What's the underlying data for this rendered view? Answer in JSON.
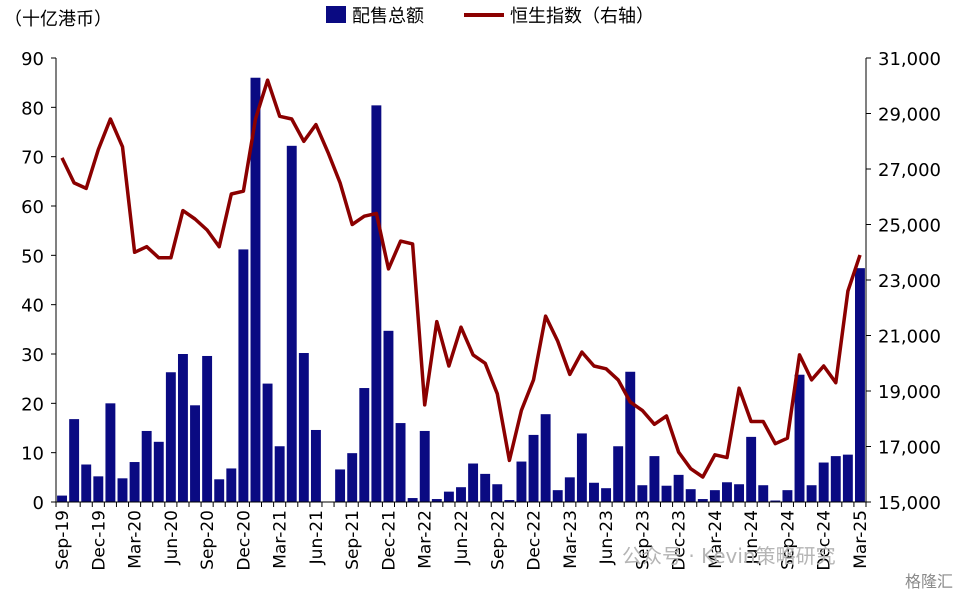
{
  "chart_data": {
    "type": "bar+line",
    "unit_label": "（十亿港币）",
    "legend": {
      "position": "top-center"
    },
    "grid": false,
    "left_axis": {
      "min": 0,
      "max": 90,
      "ticks": [
        "0",
        "10",
        "20",
        "30",
        "40",
        "50",
        "60",
        "70",
        "80",
        "90"
      ]
    },
    "right_axis": {
      "min": 15000,
      "max": 31000,
      "ticks": [
        "15,000",
        "17,000",
        "19,000",
        "21,000",
        "23,000",
        "25,000",
        "27,000",
        "29,000",
        "31,000"
      ]
    },
    "x_tick_labels": [
      "Sep-19",
      "Dec-19",
      "Mar-20",
      "Jun-20",
      "Sep-20",
      "Dec-20",
      "Mar-21",
      "Jun-21",
      "Sep-21",
      "Dec-21",
      "Mar-22",
      "Jun-22",
      "Sep-22",
      "Dec-22",
      "Mar-23",
      "Jun-23",
      "Sep-23",
      "Dec-23",
      "Mar-24",
      "Jun-24",
      "Sep-24",
      "Dec-24",
      "Mar-25"
    ],
    "months": [
      "Sep-19",
      "Oct-19",
      "Nov-19",
      "Dec-19",
      "Jan-20",
      "Feb-20",
      "Mar-20",
      "Apr-20",
      "May-20",
      "Jun-20",
      "Jul-20",
      "Aug-20",
      "Sep-20",
      "Oct-20",
      "Nov-20",
      "Dec-20",
      "Jan-21",
      "Feb-21",
      "Mar-21",
      "Apr-21",
      "May-21",
      "Jun-21",
      "Jul-21",
      "Aug-21",
      "Sep-21",
      "Oct-21",
      "Nov-21",
      "Dec-21",
      "Jan-22",
      "Feb-22",
      "Mar-22",
      "Apr-22",
      "May-22",
      "Jun-22",
      "Jul-22",
      "Aug-22",
      "Sep-22",
      "Oct-22",
      "Nov-22",
      "Dec-22",
      "Jan-23",
      "Feb-23",
      "Mar-23",
      "Apr-23",
      "May-23",
      "Jun-23",
      "Jul-23",
      "Aug-23",
      "Sep-23",
      "Oct-23",
      "Nov-23",
      "Dec-23",
      "Jan-24",
      "Feb-24",
      "Mar-24",
      "Apr-24",
      "May-24",
      "Jun-24",
      "Jul-24",
      "Aug-24",
      "Sep-24",
      "Oct-24",
      "Nov-24",
      "Dec-24",
      "Jan-25",
      "Feb-25",
      "Mar-25"
    ],
    "series": [
      {
        "name": "配售总额",
        "kind": "bar",
        "axis": "left",
        "color": "#0a0a82",
        "values": [
          1.3,
          16.8,
          7.6,
          5.2,
          20.0,
          4.8,
          8.1,
          14.4,
          12.2,
          26.3,
          30.0,
          19.6,
          29.6,
          4.6,
          6.8,
          51.2,
          86.0,
          24.0,
          11.3,
          72.2,
          30.2,
          14.6,
          0,
          6.6,
          9.9,
          23.1,
          80.4,
          34.7,
          16.0,
          0.8,
          14.4,
          0.6,
          2.1,
          3.0,
          7.8,
          5.7,
          3.6,
          0.4,
          8.2,
          13.6,
          17.8,
          2.4,
          5.0,
          13.9,
          3.9,
          2.8,
          11.3,
          26.4,
          3.4,
          9.3,
          3.3,
          5.5,
          2.6,
          0.6,
          2.4,
          4.0,
          3.6,
          13.2,
          3.4,
          0.3,
          2.4,
          25.8,
          3.4,
          8.0,
          9.3,
          9.6,
          47.4
        ]
      },
      {
        "name": "恒生指数（右轴）",
        "kind": "line",
        "axis": "right",
        "color": "#8b0000",
        "values": [
          27400,
          26500,
          26300,
          27700,
          28800,
          27800,
          24000,
          24200,
          23800,
          23800,
          25500,
          25200,
          24800,
          24200,
          26100,
          26200,
          28800,
          30200,
          28900,
          28800,
          28000,
          28600,
          27600,
          26500,
          25000,
          25300,
          25400,
          23400,
          24400,
          24300,
          18500,
          21500,
          19900,
          21300,
          20300,
          20000,
          18900,
          16500,
          18300,
          19400,
          21700,
          20800,
          19600,
          20400,
          19900,
          19800,
          19400,
          18600,
          18300,
          17800,
          18100,
          16800,
          16200,
          15900,
          16700,
          16600,
          19100,
          17900,
          17900,
          17100,
          17300,
          20300,
          19400,
          19900,
          19300,
          22600,
          23900
        ]
      }
    ]
  },
  "watermark": {
    "text": "公众号 · Kevin策略研究",
    "brand": "格隆汇"
  }
}
